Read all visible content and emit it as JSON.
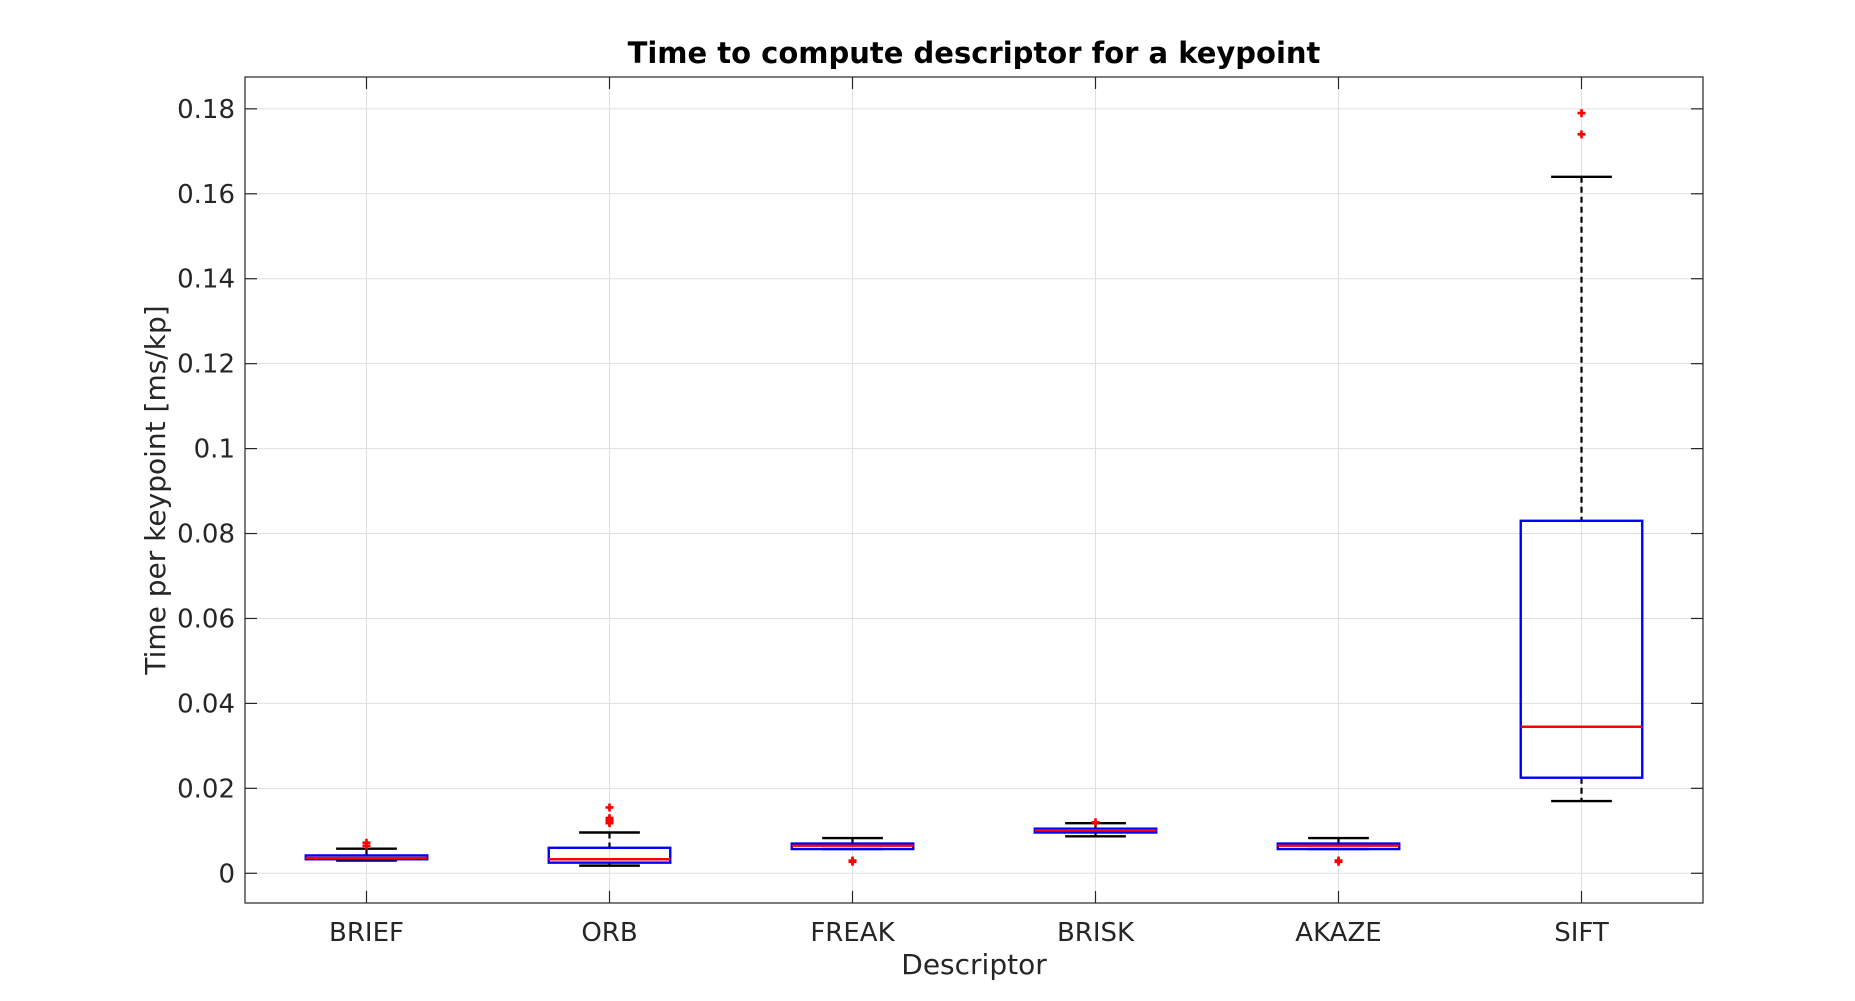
{
  "chart_data": {
    "type": "box",
    "title": "Time to compute descriptor for a keypoint",
    "xlabel": "Descriptor",
    "ylabel": "Time per keypoint [ms/kp]",
    "ylim": [
      -0.007,
      0.1875
    ],
    "yticks": [
      0,
      0.02,
      0.04,
      0.06,
      0.08,
      0.1,
      0.12,
      0.14,
      0.16,
      0.18
    ],
    "ytick_labels": [
      "0",
      "0.02",
      "0.04",
      "0.06",
      "0.08",
      "0.1",
      "0.12",
      "0.14",
      "0.16",
      "0.18"
    ],
    "grid": true,
    "categories": [
      "BRIEF",
      "ORB",
      "FREAK",
      "BRISK",
      "AKAZE",
      "SIFT"
    ],
    "boxes": [
      {
        "name": "BRIEF",
        "whisker_low": 0.003,
        "q1": 0.0033,
        "median": 0.0036,
        "q3": 0.0042,
        "whisker_high": 0.0058,
        "outliers": [
          0.0065,
          0.0072
        ]
      },
      {
        "name": "ORB",
        "whisker_low": 0.0018,
        "q1": 0.0025,
        "median": 0.0033,
        "q3": 0.006,
        "whisker_high": 0.0096,
        "outliers": [
          0.0118,
          0.0122,
          0.0126,
          0.013,
          0.0155
        ]
      },
      {
        "name": "FREAK",
        "whisker_low": 0.0057,
        "q1": 0.0057,
        "median": 0.0065,
        "q3": 0.007,
        "whisker_high": 0.0083,
        "outliers": [
          0.0027,
          0.003
        ]
      },
      {
        "name": "BRISK",
        "whisker_low": 0.0087,
        "q1": 0.0096,
        "median": 0.0101,
        "q3": 0.0105,
        "whisker_high": 0.0118,
        "outliers": [
          0.012
        ]
      },
      {
        "name": "AKAZE",
        "whisker_low": 0.0057,
        "q1": 0.0057,
        "median": 0.0065,
        "q3": 0.007,
        "whisker_high": 0.0083,
        "outliers": [
          0.0027,
          0.003
        ]
      },
      {
        "name": "SIFT",
        "whisker_low": 0.017,
        "q1": 0.0225,
        "median": 0.0345,
        "q3": 0.083,
        "whisker_high": 0.164,
        "outliers": [
          0.174,
          0.179
        ]
      }
    ],
    "colors": {
      "box": "#0000ff",
      "median": "#ff0000",
      "whisker": "#000000",
      "outlier": "#ff0000",
      "grid": "#e0e0e0",
      "axes": "#262626"
    }
  }
}
